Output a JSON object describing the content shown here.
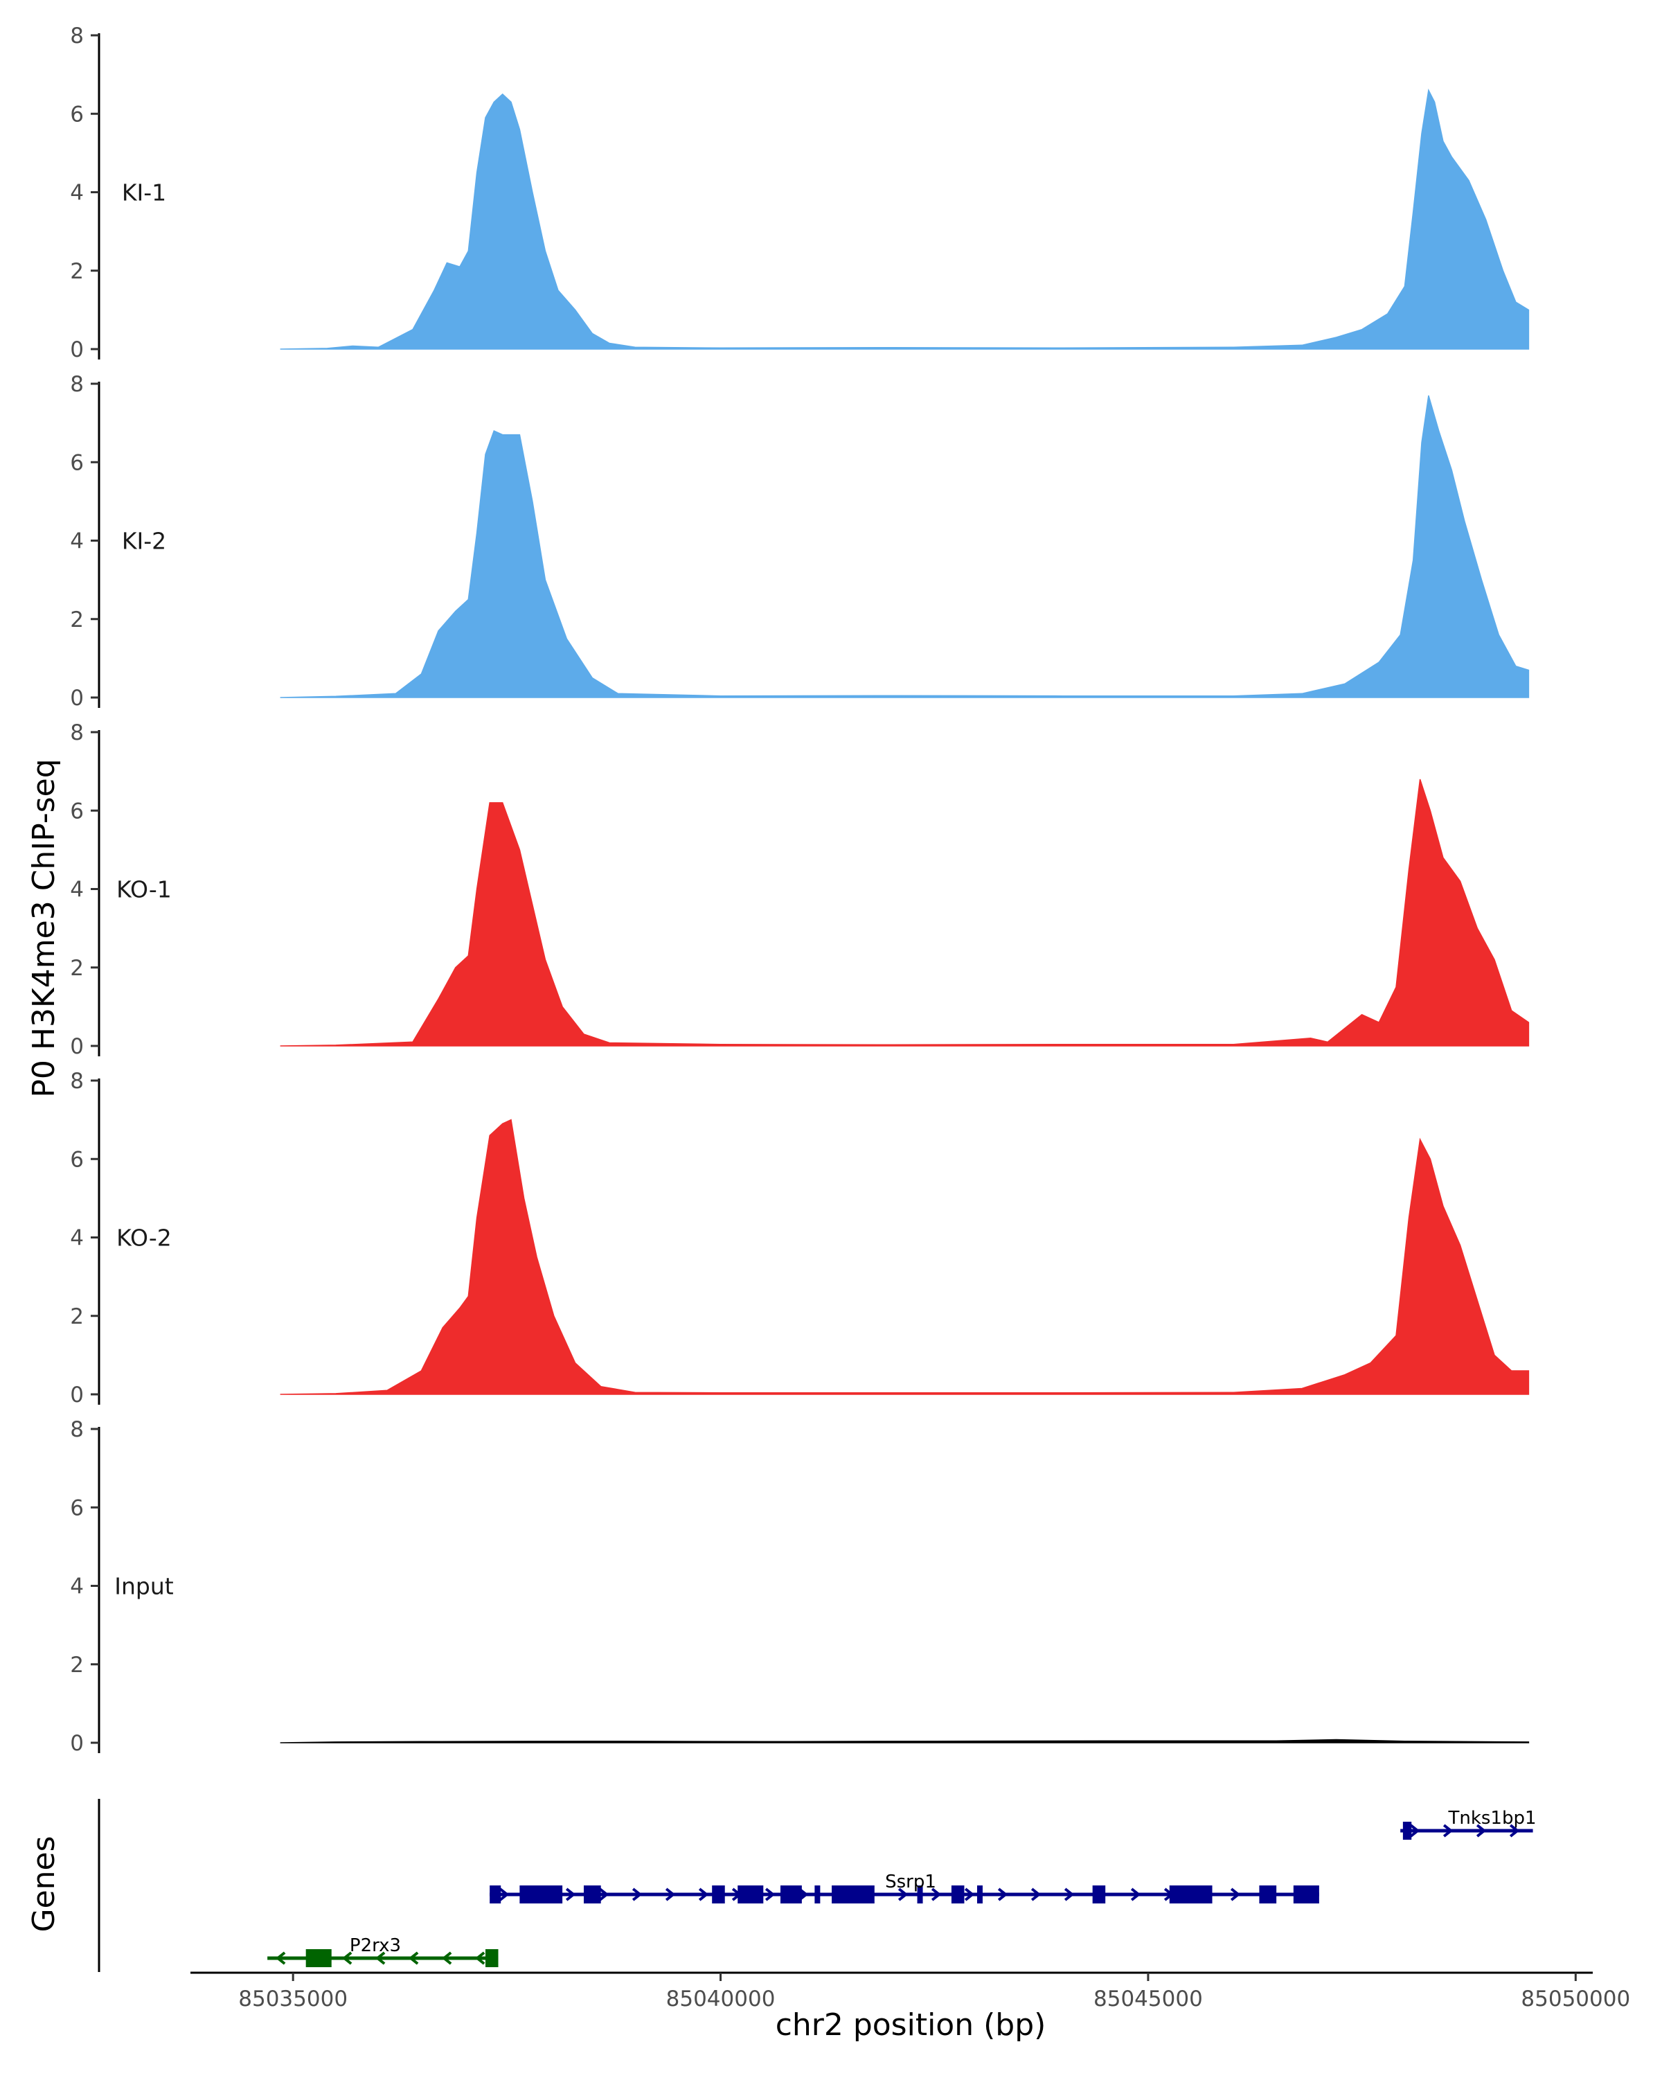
{
  "chart_data": {
    "type": "area",
    "ylabel": "P0 H3K4me3 ChIP-seq",
    "xlabel": "chr2 position (bp)",
    "genes_label": "Genes",
    "xlim": [
      85033800,
      85050200
    ],
    "ylim": [
      0,
      8
    ],
    "yticks": [
      "0",
      "2",
      "4",
      "6",
      "8"
    ],
    "xticks": [
      {
        "value": 85035000,
        "label": "85035000"
      },
      {
        "value": 85040000,
        "label": "85040000"
      },
      {
        "value": 85045000,
        "label": "85045000"
      },
      {
        "value": 85050000,
        "label": "85050000"
      }
    ],
    "tracks": [
      {
        "name": "KI-1",
        "color": "#5dabea",
        "points": [
          [
            85034850,
            0
          ],
          [
            85035400,
            0.02
          ],
          [
            85035700,
            0.08
          ],
          [
            85036000,
            0.05
          ],
          [
            85036400,
            0.5
          ],
          [
            85036650,
            1.5
          ],
          [
            85036800,
            2.2
          ],
          [
            85036950,
            2.1
          ],
          [
            85037050,
            2.5
          ],
          [
            85037150,
            4.5
          ],
          [
            85037250,
            5.9
          ],
          [
            85037350,
            6.3
          ],
          [
            85037450,
            6.5
          ],
          [
            85037550,
            6.3
          ],
          [
            85037650,
            5.6
          ],
          [
            85037800,
            4.0
          ],
          [
            85037950,
            2.5
          ],
          [
            85038100,
            1.5
          ],
          [
            85038300,
            1.0
          ],
          [
            85038500,
            0.4
          ],
          [
            85038700,
            0.15
          ],
          [
            85039000,
            0.05
          ],
          [
            85040000,
            0.03
          ],
          [
            85042000,
            0.04
          ],
          [
            85044000,
            0.03
          ],
          [
            85046000,
            0.05
          ],
          [
            85046800,
            0.1
          ],
          [
            85047200,
            0.3
          ],
          [
            85047500,
            0.5
          ],
          [
            85047800,
            0.9
          ],
          [
            85048000,
            1.6
          ],
          [
            85048100,
            3.5
          ],
          [
            85048200,
            5.5
          ],
          [
            85048280,
            6.6
          ],
          [
            85048350,
            6.3
          ],
          [
            85048450,
            5.3
          ],
          [
            85048550,
            4.9
          ],
          [
            85048750,
            4.3
          ],
          [
            85048950,
            3.3
          ],
          [
            85049150,
            2.0
          ],
          [
            85049300,
            1.2
          ],
          [
            85049450,
            1.0
          ]
        ]
      },
      {
        "name": "KI-2",
        "color": "#5dabea",
        "points": [
          [
            85034850,
            0
          ],
          [
            85035500,
            0.03
          ],
          [
            85036200,
            0.1
          ],
          [
            85036500,
            0.6
          ],
          [
            85036700,
            1.7
          ],
          [
            85036900,
            2.2
          ],
          [
            85037050,
            2.5
          ],
          [
            85037150,
            4.2
          ],
          [
            85037250,
            6.2
          ],
          [
            85037350,
            6.8
          ],
          [
            85037450,
            6.7
          ],
          [
            85037650,
            6.7
          ],
          [
            85037800,
            5.0
          ],
          [
            85037950,
            3.0
          ],
          [
            85038200,
            1.5
          ],
          [
            85038500,
            0.5
          ],
          [
            85038800,
            0.1
          ],
          [
            85040000,
            0.04
          ],
          [
            85042000,
            0.05
          ],
          [
            85044000,
            0.04
          ],
          [
            85046000,
            0.04
          ],
          [
            85046800,
            0.1
          ],
          [
            85047300,
            0.35
          ],
          [
            85047700,
            0.9
          ],
          [
            85047950,
            1.6
          ],
          [
            85048100,
            3.5
          ],
          [
            85048200,
            6.5
          ],
          [
            85048280,
            7.7
          ],
          [
            85048400,
            6.8
          ],
          [
            85048550,
            5.8
          ],
          [
            85048700,
            4.5
          ],
          [
            85048900,
            3.0
          ],
          [
            85049100,
            1.6
          ],
          [
            85049300,
            0.8
          ],
          [
            85049450,
            0.7
          ]
        ]
      },
      {
        "name": "KO-1",
        "color": "#ee2c2c",
        "points": [
          [
            85034850,
            0
          ],
          [
            85035500,
            0.02
          ],
          [
            85036400,
            0.1
          ],
          [
            85036700,
            1.2
          ],
          [
            85036900,
            2.0
          ],
          [
            85037050,
            2.3
          ],
          [
            85037150,
            4.0
          ],
          [
            85037300,
            6.2
          ],
          [
            85037450,
            6.2
          ],
          [
            85037650,
            5.0
          ],
          [
            85037800,
            3.6
          ],
          [
            85037950,
            2.2
          ],
          [
            85038150,
            1.0
          ],
          [
            85038400,
            0.3
          ],
          [
            85038700,
            0.08
          ],
          [
            85040000,
            0.04
          ],
          [
            85042000,
            0.03
          ],
          [
            85044000,
            0.04
          ],
          [
            85046000,
            0.04
          ],
          [
            85046900,
            0.2
          ],
          [
            85047100,
            0.1
          ],
          [
            85047500,
            0.8
          ],
          [
            85047700,
            0.6
          ],
          [
            85047900,
            1.5
          ],
          [
            85048050,
            4.5
          ],
          [
            85048180,
            6.8
          ],
          [
            85048300,
            6.0
          ],
          [
            85048450,
            4.8
          ],
          [
            85048650,
            4.2
          ],
          [
            85048850,
            3.0
          ],
          [
            85049050,
            2.2
          ],
          [
            85049250,
            0.9
          ],
          [
            85049450,
            0.6
          ]
        ]
      },
      {
        "name": "KO-2",
        "color": "#ee2c2c",
        "points": [
          [
            85034850,
            0
          ],
          [
            85035500,
            0.02
          ],
          [
            85036100,
            0.1
          ],
          [
            85036500,
            0.6
          ],
          [
            85036750,
            1.7
          ],
          [
            85036950,
            2.2
          ],
          [
            85037050,
            2.5
          ],
          [
            85037150,
            4.5
          ],
          [
            85037300,
            6.6
          ],
          [
            85037450,
            6.9
          ],
          [
            85037550,
            7.0
          ],
          [
            85037700,
            5.0
          ],
          [
            85037850,
            3.5
          ],
          [
            85038050,
            2.0
          ],
          [
            85038300,
            0.8
          ],
          [
            85038600,
            0.2
          ],
          [
            85039000,
            0.05
          ],
          [
            85040000,
            0.04
          ],
          [
            85042000,
            0.04
          ],
          [
            85044000,
            0.04
          ],
          [
            85046000,
            0.05
          ],
          [
            85046800,
            0.15
          ],
          [
            85047300,
            0.5
          ],
          [
            85047600,
            0.8
          ],
          [
            85047900,
            1.5
          ],
          [
            85048050,
            4.5
          ],
          [
            85048180,
            6.5
          ],
          [
            85048300,
            6.0
          ],
          [
            85048450,
            4.8
          ],
          [
            85048650,
            3.8
          ],
          [
            85048850,
            2.4
          ],
          [
            85049050,
            1.0
          ],
          [
            85049250,
            0.6
          ],
          [
            85049450,
            0.6
          ]
        ]
      },
      {
        "name": "Input",
        "color": "#000000",
        "points": [
          [
            85034850,
            0
          ],
          [
            85035500,
            0.02
          ],
          [
            85036500,
            0.03
          ],
          [
            85038500,
            0.04
          ],
          [
            85040500,
            0.03
          ],
          [
            85042500,
            0.04
          ],
          [
            85044500,
            0.05
          ],
          [
            85046500,
            0.05
          ],
          [
            85047200,
            0.08
          ],
          [
            85048000,
            0.04
          ],
          [
            85049450,
            0.02
          ]
        ]
      }
    ],
    "genes": [
      {
        "name": "Ssrp1",
        "color": "#00008b",
        "strand": "+",
        "row": 1,
        "start": 85037300,
        "end": 85047000,
        "exons": [
          [
            85037300,
            85037430
          ],
          [
            85037650,
            85038150
          ],
          [
            85038400,
            85038600
          ],
          [
            85039900,
            85040050
          ],
          [
            85040200,
            85040500
          ],
          [
            85040700,
            85040950
          ],
          [
            85041100,
            85041150
          ],
          [
            85041300,
            85041800
          ],
          [
            85042300,
            85042350
          ],
          [
            85042700,
            85042850
          ],
          [
            85043000,
            85043050
          ],
          [
            85044350,
            85044500
          ],
          [
            85045250,
            85045750
          ],
          [
            85046300,
            85046500
          ],
          [
            85046700,
            85047000
          ]
        ]
      },
      {
        "name": "Tnks1bp1",
        "color": "#00008b",
        "strand": "+",
        "row": 0,
        "start": 85047950,
        "end": 85049500,
        "exons": [
          [
            85047980,
            85048080
          ]
        ]
      },
      {
        "name": "P2rx3",
        "color": "#006400",
        "strand": "-",
        "row": 2,
        "start": 85034700,
        "end": 85037400,
        "exons": [
          [
            85035150,
            85035450
          ],
          [
            85037250,
            85037400
          ]
        ]
      }
    ]
  }
}
